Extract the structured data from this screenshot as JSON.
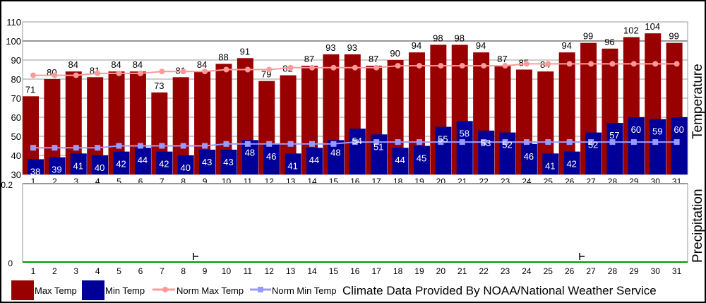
{
  "chart_data": [
    {
      "type": "bar",
      "ylabel": "Temperature",
      "ylim": [
        30,
        110
      ],
      "yticks": [
        30,
        40,
        50,
        60,
        70,
        80,
        90,
        100,
        110
      ],
      "grid": true,
      "categories": [
        "1",
        "2",
        "3",
        "4",
        "5",
        "6",
        "7",
        "8",
        "9",
        "10",
        "11",
        "12",
        "13",
        "14",
        "15",
        "16",
        "17",
        "18",
        "19",
        "20",
        "21",
        "22",
        "23",
        "24",
        "25",
        "26",
        "27",
        "28",
        "29",
        "30",
        "31"
      ],
      "series": [
        {
          "name": "Max Temp",
          "type": "bar",
          "color": "#990000",
          "values": [
            71,
            80,
            84,
            81,
            84,
            84,
            73,
            81,
            84,
            88,
            91,
            79,
            82,
            87,
            93,
            93,
            87,
            90,
            94,
            98,
            98,
            94,
            87,
            85,
            84,
            94,
            99,
            96,
            102,
            104,
            99
          ]
        },
        {
          "name": "Min Temp",
          "type": "bar",
          "color": "#000099",
          "values": [
            38,
            39,
            41,
            40,
            42,
            44,
            42,
            40,
            43,
            43,
            48,
            46,
            41,
            44,
            48,
            54,
            51,
            44,
            45,
            55,
            58,
            53,
            52,
            46,
            41,
            42,
            52,
            57,
            60,
            59,
            60
          ]
        },
        {
          "name": "Norm Max Temp",
          "type": "line",
          "color": "#ff9999",
          "values": [
            82,
            82,
            82,
            83,
            83,
            83,
            84,
            84,
            84,
            85,
            85,
            85,
            86,
            86,
            86,
            86,
            86,
            87,
            87,
            87,
            87,
            87,
            87,
            88,
            88,
            88,
            88,
            88,
            88,
            88,
            88
          ]
        },
        {
          "name": "Norm Min Temp",
          "type": "line",
          "color": "#9999ff",
          "values": [
            44,
            44,
            44,
            44,
            45,
            45,
            45,
            45,
            45,
            46,
            46,
            46,
            46,
            46,
            46,
            47,
            47,
            47,
            47,
            47,
            47,
            47,
            47,
            47,
            47,
            47,
            47,
            47,
            47,
            47,
            47
          ]
        }
      ]
    },
    {
      "type": "bar",
      "ylabel": "Precipitation",
      "ylim": [
        0,
        0.2
      ],
      "yticks": [
        "0",
        "0.2"
      ],
      "categories": [
        "1",
        "2",
        "3",
        "4",
        "5",
        "6",
        "7",
        "8",
        "9",
        "10",
        "11",
        "12",
        "13",
        "14",
        "15",
        "16",
        "17",
        "18",
        "19",
        "20",
        "21",
        "22",
        "23",
        "24",
        "25",
        "26",
        "27",
        "28",
        "29",
        "30",
        "31"
      ],
      "trace_days": [
        9,
        27
      ],
      "trace_marker": "T",
      "baseline_color": "#009900"
    }
  ],
  "legend": [
    "Max Temp",
    "Min Temp",
    "Norm Max Temp",
    "Norm Min Temp"
  ],
  "credit": "Climate Data Provided By NOAA/National Weather Service"
}
